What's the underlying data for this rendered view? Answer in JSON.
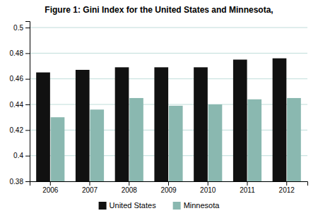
{
  "chart_data": {
    "type": "bar",
    "title": "Figure 1: Gini Index for the United States and Minnesota,",
    "categories": [
      "2006",
      "2007",
      "2008",
      "2009",
      "2010",
      "2011",
      "2012"
    ],
    "series": [
      {
        "name": "United States",
        "color": "#111111",
        "values": [
          0.465,
          0.467,
          0.469,
          0.469,
          0.469,
          0.475,
          0.476
        ]
      },
      {
        "name": "Minnesota",
        "color": "#8ab8b0",
        "values": [
          0.43,
          0.436,
          0.445,
          0.439,
          0.44,
          0.444,
          0.445
        ]
      }
    ],
    "ylim": [
      0.38,
      0.505
    ],
    "yticks": [
      0.38,
      0.4,
      0.42,
      0.44,
      0.46,
      0.48,
      0.5
    ],
    "grid": true,
    "legend": "bottom"
  }
}
